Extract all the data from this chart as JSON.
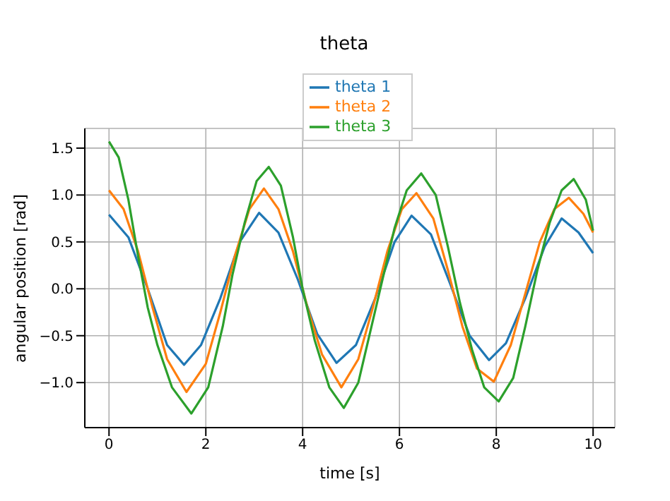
{
  "chart_data": {
    "type": "line",
    "title": "theta",
    "xlabel": "time [s]",
    "ylabel": "angular position [rad]",
    "xlim": [
      -0.5,
      10.45
    ],
    "ylim": [
      -1.48,
      1.71
    ],
    "xticks": [
      0,
      2,
      4,
      6,
      8,
      10
    ],
    "yticks": [
      {
        "value": -1,
        "label": "−1.0"
      },
      {
        "value": -0.5,
        "label": "−0.5"
      },
      {
        "value": 0,
        "label": "0.0"
      },
      {
        "value": 0.5,
        "label": "0.5"
      },
      {
        "value": 1,
        "label": "1.0"
      },
      {
        "value": 1.5,
        "label": "1.5"
      }
    ],
    "grid": true,
    "legend": "top",
    "marker": "none",
    "line_style": "solid",
    "series": [
      {
        "name": "theta 1",
        "color": "#1f77b4",
        "x": [
          0,
          0.4,
          0.8,
          1.2,
          1.55,
          1.9,
          2.3,
          2.7,
          3.1,
          3.5,
          3.9,
          4.3,
          4.7,
          5.1,
          5.5,
          5.9,
          6.25,
          6.65,
          7.05,
          7.45,
          7.85,
          8.2,
          8.6,
          9.0,
          9.35,
          9.7,
          10
        ],
        "values": [
          0.79,
          0.55,
          0.0,
          -0.6,
          -0.81,
          -0.6,
          -0.1,
          0.5,
          0.81,
          0.6,
          0.1,
          -0.48,
          -0.79,
          -0.6,
          -0.1,
          0.5,
          0.78,
          0.58,
          0.05,
          -0.5,
          -0.76,
          -0.58,
          -0.1,
          0.45,
          0.75,
          0.6,
          0.38
        ]
      },
      {
        "name": "theta 2",
        "color": "#ff7f0e",
        "x": [
          0,
          0.3,
          0.6,
          0.9,
          1.2,
          1.6,
          2.0,
          2.3,
          2.6,
          2.9,
          3.2,
          3.5,
          3.8,
          4.1,
          4.4,
          4.8,
          5.15,
          5.45,
          5.75,
          6.05,
          6.35,
          6.7,
          7.0,
          7.3,
          7.6,
          7.95,
          8.3,
          8.6,
          8.9,
          9.2,
          9.5,
          9.8,
          10
        ],
        "values": [
          1.05,
          0.85,
          0.4,
          -0.2,
          -0.75,
          -1.1,
          -0.8,
          -0.25,
          0.35,
          0.85,
          1.07,
          0.85,
          0.4,
          -0.2,
          -0.7,
          -1.05,
          -0.75,
          -0.2,
          0.4,
          0.85,
          1.02,
          0.75,
          0.2,
          -0.4,
          -0.85,
          -0.99,
          -0.6,
          -0.05,
          0.5,
          0.85,
          0.97,
          0.8,
          0.6
        ]
      },
      {
        "name": "theta 3",
        "color": "#2ca02c",
        "x": [
          0,
          0.2,
          0.4,
          0.6,
          0.8,
          1.0,
          1.3,
          1.7,
          2.05,
          2.35,
          2.55,
          2.8,
          3.05,
          3.3,
          3.55,
          3.8,
          4.0,
          4.25,
          4.55,
          4.85,
          5.15,
          5.4,
          5.65,
          5.9,
          6.15,
          6.45,
          6.75,
          7.0,
          7.25,
          7.5,
          7.75,
          8.05,
          8.35,
          8.6,
          8.85,
          9.1,
          9.35,
          9.6,
          9.85,
          10
        ],
        "values": [
          1.57,
          1.4,
          0.95,
          0.35,
          -0.2,
          -0.6,
          -1.05,
          -1.33,
          -1.05,
          -0.4,
          0.15,
          0.7,
          1.15,
          1.3,
          1.1,
          0.55,
          0.0,
          -0.55,
          -1.05,
          -1.27,
          -1.0,
          -0.45,
          0.1,
          0.65,
          1.05,
          1.23,
          1.0,
          0.45,
          -0.15,
          -0.65,
          -1.05,
          -1.2,
          -0.95,
          -0.4,
          0.2,
          0.7,
          1.05,
          1.17,
          0.95,
          0.62
        ]
      }
    ]
  }
}
